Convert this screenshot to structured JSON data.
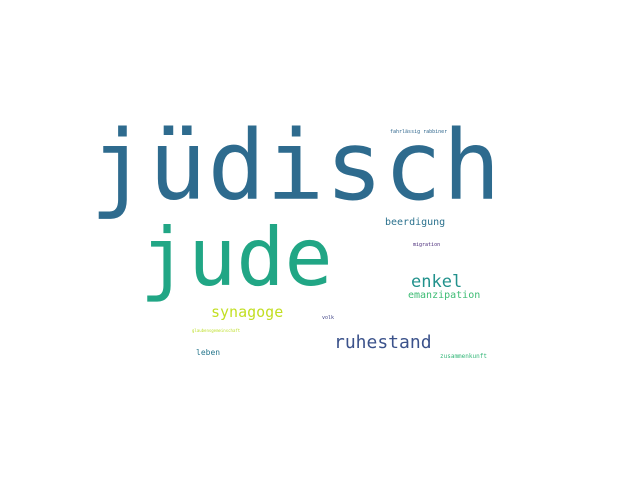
{
  "words": [
    {
      "text": "jüdisch",
      "color": "#2e6b8e"
    },
    {
      "text": "jude",
      "color": "#21a685"
    },
    {
      "text": "enkel",
      "color": "#21918c"
    },
    {
      "text": "synagoge",
      "color": "#c2df23"
    },
    {
      "text": "ruhestand",
      "color": "#3b528b"
    },
    {
      "text": "beerdigung",
      "color": "#2c728e"
    },
    {
      "text": "emanzipation",
      "color": "#3dbc74"
    },
    {
      "text": "leben",
      "color": "#2a788e"
    },
    {
      "text": "zusammenkunft",
      "color": "#35b779"
    },
    {
      "text": "fahrlässig rabbiner",
      "color": "#31688e"
    },
    {
      "text": "migration",
      "color": "#482878"
    },
    {
      "text": "volk",
      "color": "#414487"
    },
    {
      "text": "glaubensgemeinschaft",
      "color": "#bddf26"
    }
  ]
}
